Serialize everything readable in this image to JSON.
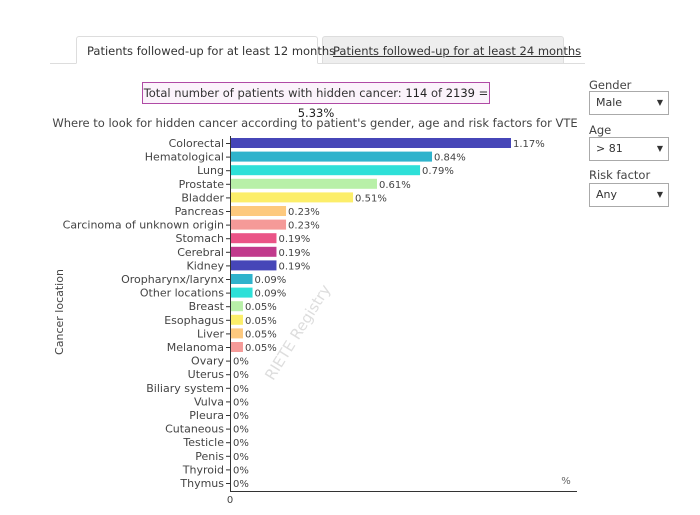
{
  "tabs": {
    "active": "Patients followed-up for at least 12 months",
    "inactive": "Patients followed-up for at least 24 months"
  },
  "summary": {
    "prefix": "Total number of patients with hidden cancer: ",
    "count": "114",
    "of": " of ",
    "total": "2139",
    "eq": " = ",
    "percent": "5.33%"
  },
  "filters": {
    "gender": {
      "label": "Gender",
      "value": "Male"
    },
    "age": {
      "label": "Age",
      "value": "> 81"
    },
    "risk": {
      "label": "Risk factor",
      "value": "Any"
    }
  },
  "watermark": "RIETE Registry",
  "chart_data": {
    "type": "bar",
    "orientation": "horizontal",
    "title": "Where to look for hidden cancer according to patient's gender, age and risk factors for VTE",
    "ylabel": "Cancer location",
    "xlabel": "%",
    "x_tick_label": "0",
    "xlim": [
      0,
      1.5
    ],
    "categories": [
      "Colorectal",
      "Hematological",
      "Lung",
      "Prostate",
      "Bladder",
      "Pancreas",
      "Carcinoma of unknown origin",
      "Stomach",
      "Cerebral",
      "Kidney",
      "Oropharynx/larynx",
      "Other locations",
      "Breast",
      "Esophagus",
      "Liver",
      "Melanoma",
      "Ovary",
      "Uterus",
      "Biliary system",
      "Vulva",
      "Pleura",
      "Cutaneous",
      "Testicle",
      "Penis",
      "Thyroid",
      "Thymus"
    ],
    "values": [
      1.17,
      0.84,
      0.79,
      0.61,
      0.51,
      0.23,
      0.23,
      0.19,
      0.19,
      0.19,
      0.09,
      0.09,
      0.05,
      0.05,
      0.05,
      0.05,
      0,
      0,
      0,
      0,
      0,
      0,
      0,
      0,
      0,
      0
    ],
    "labels": [
      "1.17%",
      "0.84%",
      "0.79%",
      "0.61%",
      "0.51%",
      "0.23%",
      "0.23%",
      "0.19%",
      "0.19%",
      "0.19%",
      "0.09%",
      "0.09%",
      "0.05%",
      "0.05%",
      "0.05%",
      "0.05%",
      "0%",
      "0%",
      "0%",
      "0%",
      "0%",
      "0%",
      "0%",
      "0%",
      "0%",
      "0%"
    ],
    "colors": [
      "#4646b8",
      "#2fb3cc",
      "#2ee0d8",
      "#b8f0a8",
      "#fcee6a",
      "#fdc97e",
      "#f59a98",
      "#ea5487",
      "#c13a8c",
      "#4646b8",
      "#2fb3cc",
      "#2ee0d8",
      "#b8f0a8",
      "#fcee6a",
      "#fdc97e",
      "#f59a98",
      "#ea5487",
      "#c13a8c",
      "#4646b8",
      "#2fb3cc",
      "#2ee0d8",
      "#b8f0a8",
      "#fcee6a",
      "#fdc97e",
      "#f59a98",
      "#ea5487"
    ]
  }
}
